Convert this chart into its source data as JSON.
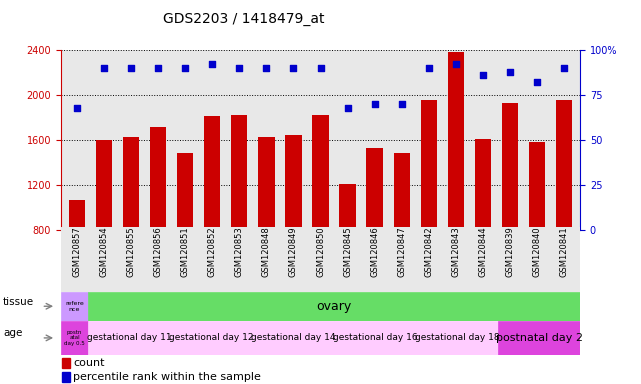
{
  "title": "GDS2203 / 1418479_at",
  "samples": [
    "GSM120857",
    "GSM120854",
    "GSM120855",
    "GSM120856",
    "GSM120851",
    "GSM120852",
    "GSM120853",
    "GSM120848",
    "GSM120849",
    "GSM120850",
    "GSM120845",
    "GSM120846",
    "GSM120847",
    "GSM120842",
    "GSM120843",
    "GSM120844",
    "GSM120839",
    "GSM120840",
    "GSM120841"
  ],
  "counts": [
    1070,
    1600,
    1630,
    1720,
    1490,
    1810,
    1820,
    1630,
    1650,
    1820,
    1210,
    1530,
    1490,
    1960,
    2380,
    1610,
    1930,
    1580,
    1960
  ],
  "percentiles": [
    68,
    90,
    90,
    90,
    90,
    92,
    90,
    90,
    90,
    90,
    68,
    70,
    70,
    90,
    92,
    86,
    88,
    82,
    90
  ],
  "ylim_left": [
    800,
    2400
  ],
  "ylim_right": [
    0,
    100
  ],
  "yticks_left": [
    800,
    1200,
    1600,
    2000,
    2400
  ],
  "yticks_right": [
    0,
    25,
    50,
    75,
    100
  ],
  "bar_color": "#cc0000",
  "dot_color": "#0000cc",
  "grid_color": "#000000",
  "bg_color": "#ffffff",
  "ax_bg_color": "#e8e8e8",
  "tissue_ref_color": "#cc99ff",
  "tissue_ovary_color": "#66dd66",
  "age_postnatal_color": "#dd44dd",
  "age_gestational_color": "#ffccff",
  "age_postnatal2_color": "#dd44dd",
  "title_fontsize": 10,
  "tick_fontsize": 7,
  "sample_fontsize": 6
}
